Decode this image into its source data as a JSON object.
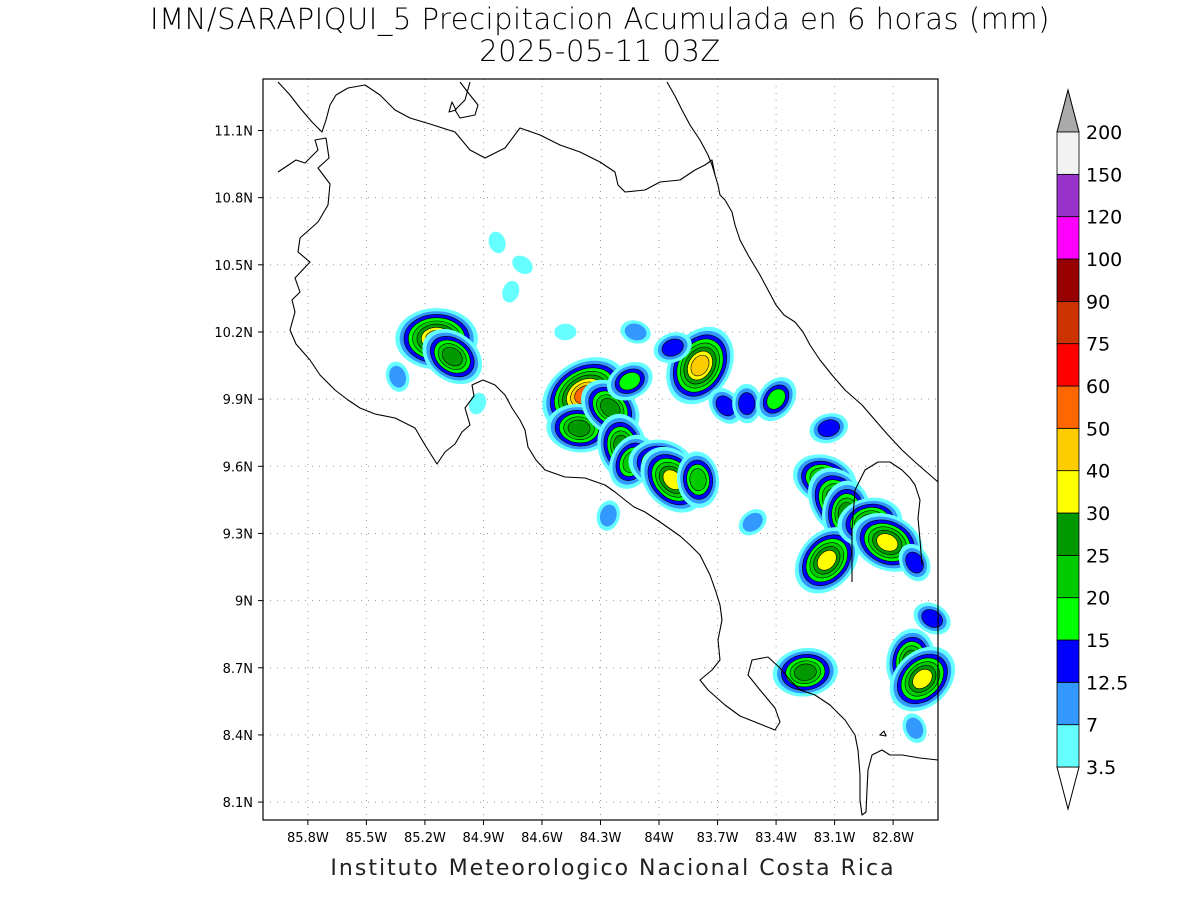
{
  "title": "IMN/SARAPIQUI_5 Precipitacion Acumulada en 6 horas (mm)",
  "subtitle": "2025-05-11 03Z",
  "footer": "Instituto Meteorologico Nacional Costa Rica",
  "map": {
    "lon_range": [
      -86.03,
      -82.57
    ],
    "lat_range": [
      8.02,
      11.33
    ],
    "lon_ticks": [
      {
        "value": -85.8,
        "label": "85.8W"
      },
      {
        "value": -85.5,
        "label": "85.5W"
      },
      {
        "value": -85.2,
        "label": "85.2W"
      },
      {
        "value": -84.9,
        "label": "84.9W"
      },
      {
        "value": -84.6,
        "label": "84.6W"
      },
      {
        "value": -84.3,
        "label": "84.3W"
      },
      {
        "value": -84.0,
        "label": "84W"
      },
      {
        "value": -83.7,
        "label": "83.7W"
      },
      {
        "value": -83.4,
        "label": "83.4W"
      },
      {
        "value": -83.1,
        "label": "83.1W"
      },
      {
        "value": -82.8,
        "label": "82.8W"
      }
    ],
    "lat_ticks": [
      {
        "value": 11.1,
        "label": "11.1N"
      },
      {
        "value": 10.8,
        "label": "10.8N"
      },
      {
        "value": 10.5,
        "label": "10.5N"
      },
      {
        "value": 10.2,
        "label": "10.2N"
      },
      {
        "value": 9.9,
        "label": "9.9N"
      },
      {
        "value": 9.6,
        "label": "9.6N"
      },
      {
        "value": 9.3,
        "label": "9.3N"
      },
      {
        "value": 9.0,
        "label": "9N"
      },
      {
        "value": 8.7,
        "label": "8.7N"
      },
      {
        "value": 8.4,
        "label": "8.4N"
      },
      {
        "value": 8.1,
        "label": "8.1N"
      }
    ],
    "grid": true,
    "grid_style": "dotted"
  },
  "legend": {
    "position": "right",
    "bins": [
      {
        "label": "3.5",
        "color": "#66ffff"
      },
      {
        "label": "7",
        "color": "#3399ff"
      },
      {
        "label": "12.5",
        "color": "#0000ff"
      },
      {
        "label": "15",
        "color": "#00ff00"
      },
      {
        "label": "20",
        "color": "#00cc00"
      },
      {
        "label": "25",
        "color": "#009900"
      },
      {
        "label": "30",
        "color": "#ffff00"
      },
      {
        "label": "40",
        "color": "#ffcc00"
      },
      {
        "label": "50",
        "color": "#ff6600"
      },
      {
        "label": "60",
        "color": "#ff0000"
      },
      {
        "label": "75",
        "color": "#cc3300"
      },
      {
        "label": "90",
        "color": "#990000"
      },
      {
        "label": "100",
        "color": "#ff00ff"
      },
      {
        "label": "120",
        "color": "#9933cc"
      },
      {
        "label": "150",
        "color": "#f2f2f2"
      },
      {
        "label": "200",
        "color": "#aaaaaa"
      }
    ]
  },
  "precip_cells": [
    {
      "lon": -85.14,
      "lat": 10.17,
      "max": 40
    },
    {
      "lon": -85.06,
      "lat": 10.09,
      "max": 25
    },
    {
      "lon": -85.34,
      "lat": 10.0,
      "max": 7
    },
    {
      "lon": -84.93,
      "lat": 9.88,
      "max": 3.5
    },
    {
      "lon": -84.38,
      "lat": 9.92,
      "max": 50
    },
    {
      "lon": -84.41,
      "lat": 9.77,
      "max": 25
    },
    {
      "lon": -84.25,
      "lat": 9.86,
      "max": 25
    },
    {
      "lon": -84.19,
      "lat": 9.69,
      "max": 25
    },
    {
      "lon": -84.14,
      "lat": 9.62,
      "max": 20
    },
    {
      "lon": -84.15,
      "lat": 9.98,
      "max": 15
    },
    {
      "lon": -83.99,
      "lat": 9.61,
      "max": 25
    },
    {
      "lon": -83.93,
      "lat": 9.54,
      "max": 30
    },
    {
      "lon": -83.8,
      "lat": 9.54,
      "max": 20
    },
    {
      "lon": -83.79,
      "lat": 10.05,
      "max": 40
    },
    {
      "lon": -83.93,
      "lat": 10.13,
      "max": 12.5
    },
    {
      "lon": -84.12,
      "lat": 10.2,
      "max": 7
    },
    {
      "lon": -83.66,
      "lat": 9.87,
      "max": 12.5
    },
    {
      "lon": -83.55,
      "lat": 9.88,
      "max": 12.5
    },
    {
      "lon": -83.4,
      "lat": 9.9,
      "max": 15
    },
    {
      "lon": -83.13,
      "lat": 9.77,
      "max": 12.5
    },
    {
      "lon": -83.15,
      "lat": 9.54,
      "max": 25
    },
    {
      "lon": -83.08,
      "lat": 9.44,
      "max": 30
    },
    {
      "lon": -83.04,
      "lat": 9.39,
      "max": 25
    },
    {
      "lon": -83.14,
      "lat": 9.18,
      "max": 30
    },
    {
      "lon": -82.92,
      "lat": 9.35,
      "max": 25
    },
    {
      "lon": -82.83,
      "lat": 9.26,
      "max": 30
    },
    {
      "lon": -82.69,
      "lat": 9.17,
      "max": 12.5
    },
    {
      "lon": -82.71,
      "lat": 8.73,
      "max": 25
    },
    {
      "lon": -82.65,
      "lat": 8.65,
      "max": 30
    },
    {
      "lon": -83.25,
      "lat": 8.68,
      "max": 25
    },
    {
      "lon": -82.6,
      "lat": 8.92,
      "max": 12.5
    },
    {
      "lon": -82.69,
      "lat": 8.43,
      "max": 7
    },
    {
      "lon": -84.26,
      "lat": 9.38,
      "max": 7
    },
    {
      "lon": -83.52,
      "lat": 9.35,
      "max": 7
    },
    {
      "lon": -84.48,
      "lat": 10.2,
      "max": 3.5
    },
    {
      "lon": -84.7,
      "lat": 10.5,
      "max": 3.5
    },
    {
      "lon": -84.83,
      "lat": 10.6,
      "max": 3.5
    },
    {
      "lon": -84.76,
      "lat": 10.38,
      "max": 3.5
    }
  ]
}
